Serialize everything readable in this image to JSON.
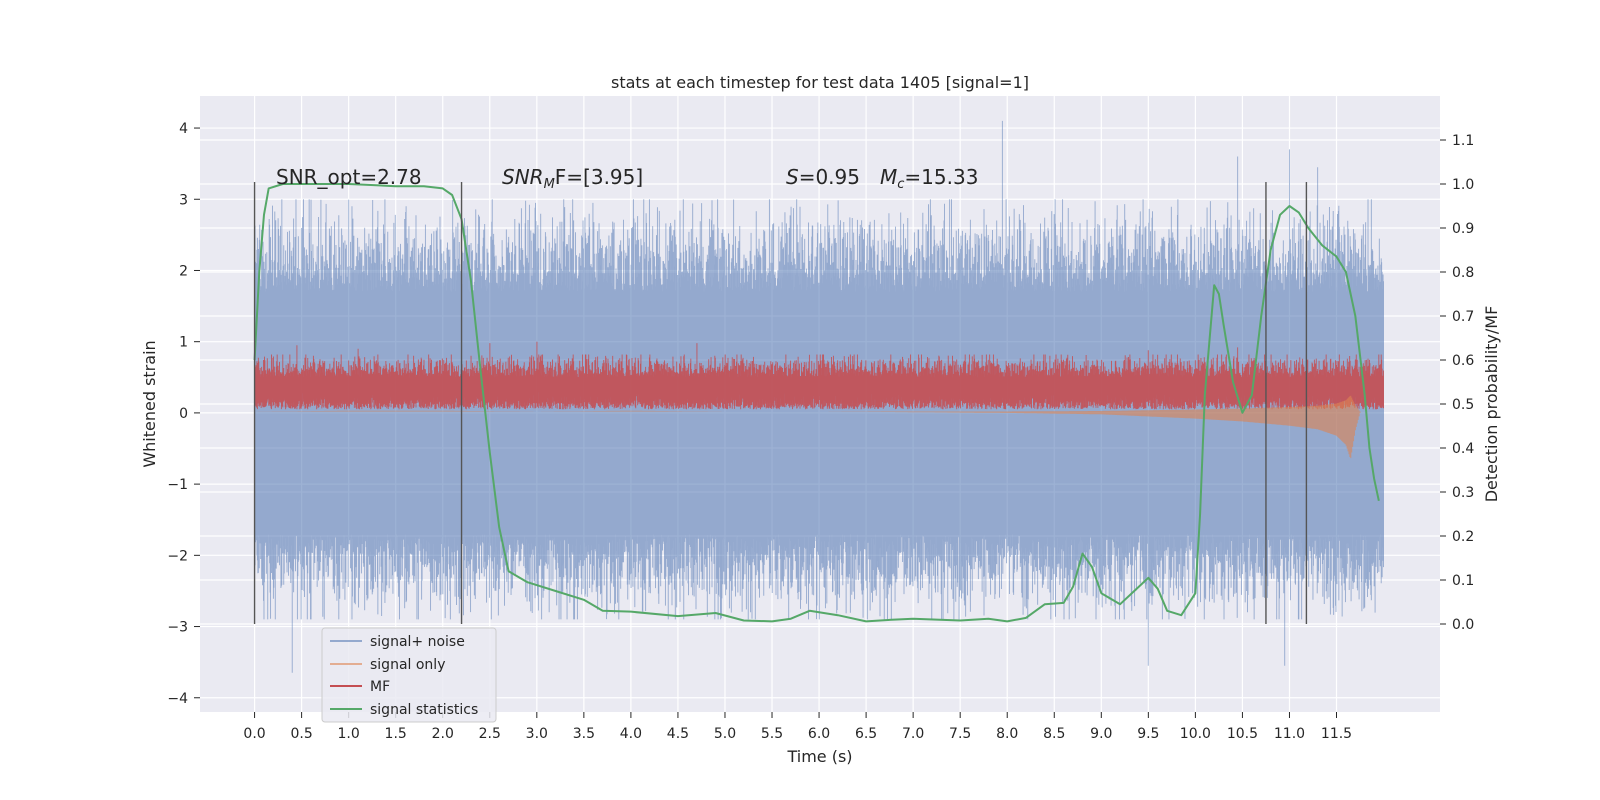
{
  "chart_data": {
    "type": "line",
    "title": "stats at each timestep for test data 1405 [signal=1]",
    "xlabel": "Time (s)",
    "ylabel_left": "Whitened strain",
    "ylabel_right": "Detection probability/MF",
    "xlim": [
      -0.58,
      12.6
    ],
    "ylim_left": [
      -4.2,
      4.45
    ],
    "ylim_right": [
      -0.2,
      1.2
    ],
    "x_ticks": [
      "0.0",
      "0.5",
      "1.0",
      "1.5",
      "2.0",
      "2.5",
      "3.0",
      "3.5",
      "4.0",
      "4.5",
      "5.0",
      "5.5",
      "6.0",
      "6.5",
      "7.0",
      "7.5",
      "8.0",
      "8.5",
      "9.0",
      "9.5",
      "10.0",
      "10.5",
      "11.0",
      "11.5"
    ],
    "y_ticks_left": [
      "4",
      "3",
      "2",
      "1",
      "0",
      "−1",
      "−2",
      "−3",
      "−4"
    ],
    "y_ticks_right": [
      "1.1",
      "1.0",
      "0.9",
      "0.8",
      "0.7",
      "0.6",
      "0.5",
      "0.4",
      "0.3",
      "0.2",
      "0.1",
      "0.0"
    ],
    "grid": true,
    "annotations": {
      "snr_opt": "SNR_opt=2.78",
      "snr_mf_prefix": "SNR",
      "snr_mf_sub": "M",
      "snr_mf_suffix": "F=[3.95]",
      "s_symbol": "S",
      "s_value": "=0.95",
      "mc_symbol": "M",
      "mc_sub": "c",
      "mc_value": "=15.33"
    },
    "vertical_markers": [
      0.0,
      2.2,
      10.75,
      11.18
    ],
    "legend": {
      "placement": "lower-left",
      "entries": [
        "signal+ noise",
        "signal only",
        "MF",
        "signal statistics"
      ]
    },
    "series": [
      {
        "name": "signal+ noise",
        "color": "#4c72b0",
        "x_range": [
          0.0,
          12.0
        ],
        "noise_envelope": [
          -2.9,
          3.0
        ],
        "peaks": [
          [
            0.0,
            3.0
          ],
          [
            0.4,
            -3.65
          ],
          [
            7.95,
            4.1
          ],
          [
            9.5,
            -3.55
          ],
          [
            10.15,
            -2.65
          ],
          [
            10.95,
            -3.55
          ],
          [
            10.45,
            3.6
          ],
          [
            11.0,
            3.7
          ],
          [
            11.3,
            3.45
          ]
        ]
      },
      {
        "name": "signal only",
        "color": "#dd8452",
        "points": [
          [
            0.0,
            0.02
          ],
          [
            1.0,
            0.03
          ],
          [
            2.0,
            0.03
          ],
          [
            3.0,
            0.02
          ],
          [
            4.0,
            0.03
          ],
          [
            5.0,
            0.02
          ],
          [
            6.0,
            0.02
          ],
          [
            7.0,
            0.01
          ],
          [
            8.0,
            0.0
          ],
          [
            9.0,
            -0.02
          ],
          [
            9.5,
            -0.05
          ],
          [
            10.0,
            -0.08
          ],
          [
            10.5,
            -0.12
          ],
          [
            11.0,
            -0.18
          ],
          [
            11.3,
            -0.23
          ],
          [
            11.5,
            -0.32
          ],
          [
            11.6,
            -0.45
          ],
          [
            11.65,
            -0.65
          ],
          [
            11.7,
            -0.25
          ],
          [
            11.75,
            0.0
          ]
        ]
      },
      {
        "name": "MF",
        "color": "#c44e52",
        "x_range": [
          0.0,
          12.0
        ],
        "band": [
          0.0,
          0.75
        ],
        "peaks": [
          [
            0.45,
            0.95
          ],
          [
            1.1,
            0.9
          ],
          [
            2.5,
            0.98
          ],
          [
            3.0,
            1.0
          ],
          [
            4.7,
            0.98
          ],
          [
            7.65,
            0.82
          ],
          [
            9.5,
            0.88
          ],
          [
            10.45,
            0.92
          ]
        ]
      },
      {
        "name": "signal statistics",
        "color": "#55a868",
        "axis": "right",
        "points": [
          [
            0.0,
            0.6
          ],
          [
            0.05,
            0.8
          ],
          [
            0.1,
            0.93
          ],
          [
            0.15,
            0.99
          ],
          [
            0.3,
            1.0
          ],
          [
            0.6,
            1.0
          ],
          [
            1.0,
            1.0
          ],
          [
            1.5,
            0.995
          ],
          [
            1.8,
            0.995
          ],
          [
            2.0,
            0.99
          ],
          [
            2.1,
            0.975
          ],
          [
            2.2,
            0.92
          ],
          [
            2.3,
            0.78
          ],
          [
            2.4,
            0.58
          ],
          [
            2.5,
            0.39
          ],
          [
            2.6,
            0.22
          ],
          [
            2.7,
            0.12
          ],
          [
            2.9,
            0.095
          ],
          [
            3.2,
            0.075
          ],
          [
            3.5,
            0.055
          ],
          [
            3.7,
            0.03
          ],
          [
            4.0,
            0.028
          ],
          [
            4.5,
            0.018
          ],
          [
            4.9,
            0.025
          ],
          [
            5.2,
            0.008
          ],
          [
            5.5,
            0.006
          ],
          [
            5.7,
            0.012
          ],
          [
            5.9,
            0.03
          ],
          [
            6.2,
            0.02
          ],
          [
            6.5,
            0.006
          ],
          [
            6.8,
            0.01
          ],
          [
            7.0,
            0.012
          ],
          [
            7.5,
            0.008
          ],
          [
            7.8,
            0.012
          ],
          [
            8.0,
            0.006
          ],
          [
            8.2,
            0.014
          ],
          [
            8.4,
            0.045
          ],
          [
            8.6,
            0.048
          ],
          [
            8.7,
            0.085
          ],
          [
            8.8,
            0.16
          ],
          [
            8.9,
            0.13
          ],
          [
            9.0,
            0.07
          ],
          [
            9.2,
            0.045
          ],
          [
            9.4,
            0.085
          ],
          [
            9.5,
            0.105
          ],
          [
            9.6,
            0.08
          ],
          [
            9.7,
            0.03
          ],
          [
            9.85,
            0.02
          ],
          [
            10.0,
            0.07
          ],
          [
            10.05,
            0.25
          ],
          [
            10.1,
            0.52
          ],
          [
            10.2,
            0.77
          ],
          [
            10.25,
            0.75
          ],
          [
            10.3,
            0.68
          ],
          [
            10.4,
            0.55
          ],
          [
            10.5,
            0.48
          ],
          [
            10.6,
            0.52
          ],
          [
            10.7,
            0.7
          ],
          [
            10.8,
            0.85
          ],
          [
            10.9,
            0.93
          ],
          [
            11.0,
            0.95
          ],
          [
            11.1,
            0.935
          ],
          [
            11.2,
            0.9
          ],
          [
            11.35,
            0.86
          ],
          [
            11.5,
            0.835
          ],
          [
            11.6,
            0.8
          ],
          [
            11.7,
            0.7
          ],
          [
            11.8,
            0.52
          ],
          [
            11.85,
            0.4
          ],
          [
            11.9,
            0.33
          ],
          [
            11.95,
            0.28
          ]
        ]
      }
    ]
  }
}
